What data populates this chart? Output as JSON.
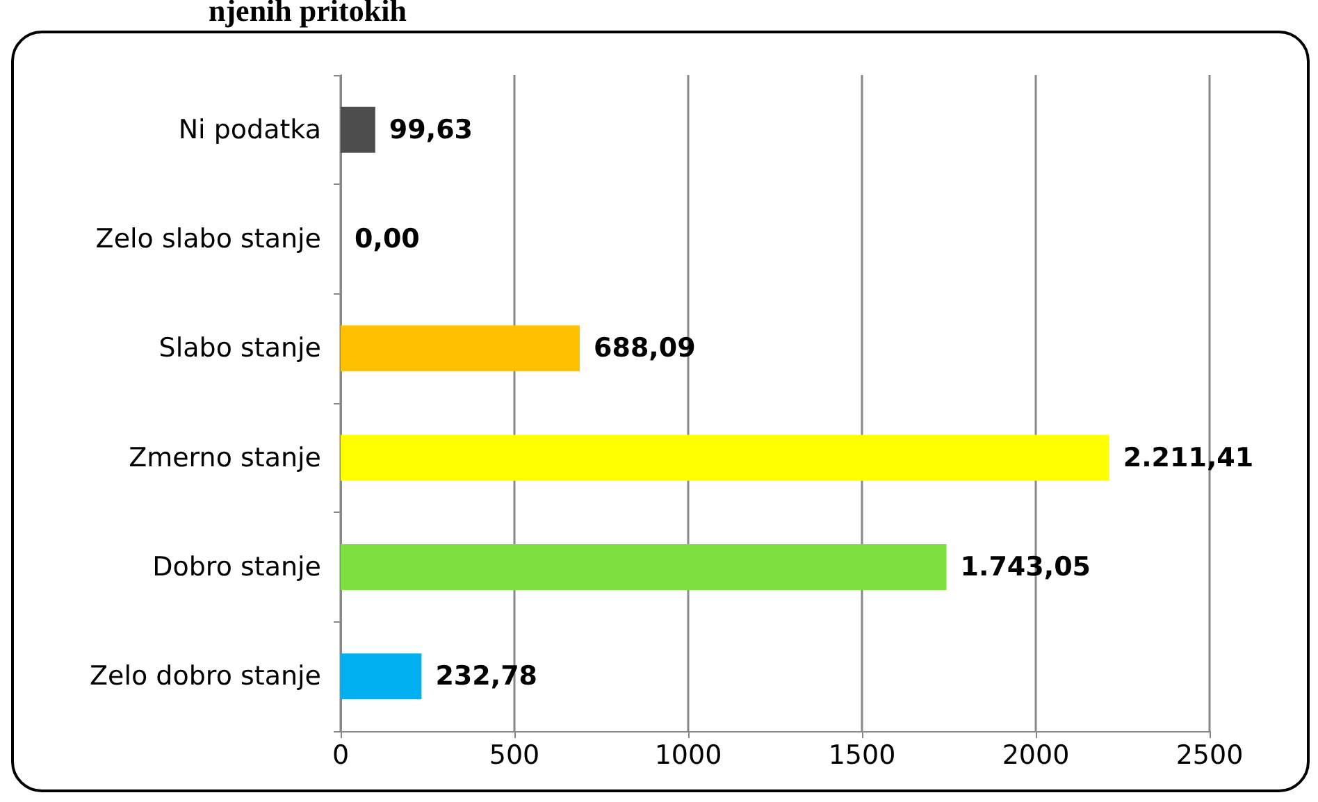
{
  "chart_data": {
    "type": "bar",
    "orientation": "horizontal",
    "title": "njenih pritokih",
    "categories": [
      "Ni podatka",
      "Zelo slabo stanje",
      "Slabo stanje",
      "Zmerno stanje",
      "Dobro stanje",
      "Zelo dobro stanje"
    ],
    "values": [
      99.63,
      0,
      688.09,
      2211.41,
      1743.05,
      232.78
    ],
    "colors": [
      "#4d4d4d",
      "#b3b300",
      "#ffc000",
      "#ffff00",
      "#7ee040",
      "#00b0f0"
    ],
    "value_labels": [
      "99,63",
      "0,00",
      "688,09",
      "2.211,41",
      "1.743,05",
      "232,78"
    ],
    "xlim": [
      0,
      2500
    ],
    "xticks": [
      0,
      500,
      1000,
      1500,
      2000,
      2500
    ],
    "grid": "x"
  }
}
